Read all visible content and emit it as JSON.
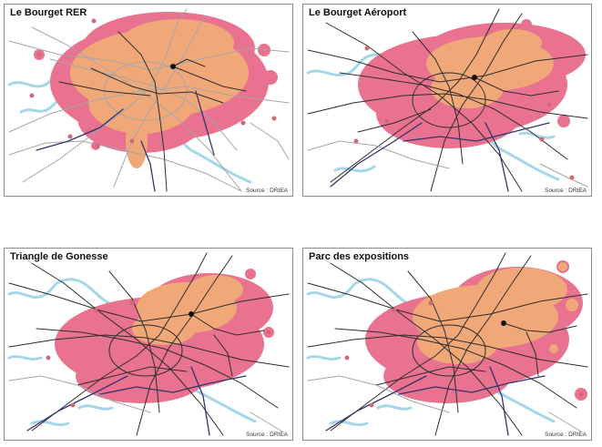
{
  "colors": {
    "pink": "#e8728f",
    "orange": "#f0a878",
    "rail_gray": "#a6a6a6",
    "rail_dark": "#2d2d2d",
    "rail_blue": "#33336f",
    "water": "#a4d7e8",
    "station": "#111111"
  },
  "panels": [
    {
      "title": "Le Bourget RER",
      "source": "Source : DRIEA"
    },
    {
      "title": "Le Bourget Aéroport",
      "source": "Source : DRIEA"
    },
    {
      "title": "Triangle de Gonesse",
      "source": "Source : DRIEA"
    },
    {
      "title": "Parc des expositions",
      "source": "Source : DRIEA"
    }
  ]
}
